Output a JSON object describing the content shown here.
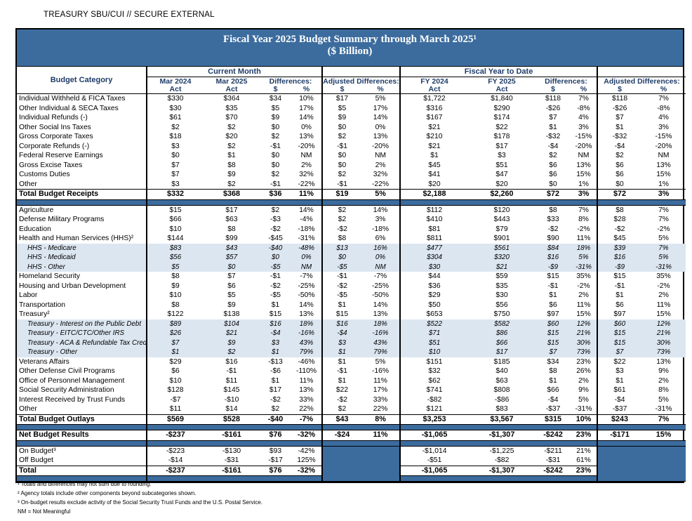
{
  "banner": "TREASURY SBU/CUI // SECURE EXTERNAL",
  "title": {
    "line1": "Fiscal Year 2025 Budget Summary through March 2025¹",
    "line2": "($ Billion)"
  },
  "columns": {
    "budget_category": "Budget Category",
    "group_current": "Current Month",
    "group_fytd": "Fiscal Year to Date",
    "mar_2024": "Mar 2024",
    "mar_2025": "Mar 2025",
    "fy_2024": "FY 2024",
    "fy_2025": "FY 2025",
    "act": "Act",
    "differences": "Differences:",
    "adjusted_differences": "Adjusted Differences:",
    "dollar": "$",
    "percent": "%"
  },
  "sections": {
    "receipts": [
      {
        "label": "Individual Withheld & FICA Taxes",
        "style": "normal",
        "values": [
          "$330",
          "$364",
          "$34",
          "10%",
          "$17",
          "5%",
          "$1,722",
          "$1,840",
          "$118",
          "7%",
          "$118",
          "7%"
        ]
      },
      {
        "label": "Other Individual & SECA Taxes",
        "style": "normal",
        "values": [
          "$30",
          "$35",
          "$5",
          "17%",
          "$5",
          "17%",
          "$316",
          "$290",
          "-$26",
          "-8%",
          "-$26",
          "-8%"
        ]
      },
      {
        "label": "Individual Refunds (-)",
        "style": "normal",
        "values": [
          "$61",
          "$70",
          "$9",
          "14%",
          "$9",
          "14%",
          "$167",
          "$174",
          "$7",
          "4%",
          "$7",
          "4%"
        ]
      },
      {
        "label": "Other Social Ins Taxes",
        "style": "normal",
        "values": [
          "$2",
          "$2",
          "$0",
          "0%",
          "$0",
          "0%",
          "$21",
          "$22",
          "$1",
          "3%",
          "$1",
          "3%"
        ]
      },
      {
        "label": "Gross Corporate Taxes",
        "style": "normal",
        "values": [
          "$18",
          "$20",
          "$2",
          "13%",
          "$2",
          "13%",
          "$210",
          "$178",
          "-$32",
          "-15%",
          "-$32",
          "-15%"
        ]
      },
      {
        "label": "Corporate Refunds (-)",
        "style": "normal",
        "values": [
          "$3",
          "$2",
          "-$1",
          "-20%",
          "-$1",
          "-20%",
          "$21",
          "$17",
          "-$4",
          "-20%",
          "-$4",
          "-20%"
        ]
      },
      {
        "label": "Federal Reserve Earnings",
        "style": "normal",
        "values": [
          "$0",
          "$1",
          "$0",
          "NM",
          "$0",
          "NM",
          "$1",
          "$3",
          "$2",
          "NM",
          "$2",
          "NM"
        ]
      },
      {
        "label": "Gross Excise Taxes",
        "style": "normal",
        "values": [
          "$7",
          "$8",
          "$0",
          "2%",
          "$0",
          "2%",
          "$45",
          "$51",
          "$6",
          "13%",
          "$6",
          "13%"
        ]
      },
      {
        "label": "Customs Duties",
        "style": "normal",
        "values": [
          "$7",
          "$9",
          "$2",
          "32%",
          "$2",
          "32%",
          "$41",
          "$47",
          "$6",
          "15%",
          "$6",
          "15%"
        ]
      },
      {
        "label": "Other",
        "style": "normal",
        "values": [
          "$3",
          "$2",
          "-$1",
          "-22%",
          "-$1",
          "-22%",
          "$20",
          "$20",
          "$0",
          "1%",
          "$0",
          "1%"
        ]
      },
      {
        "label": "Total Budget Receipts",
        "style": "bold",
        "values": [
          "$332",
          "$368",
          "$36",
          "11%",
          "$19",
          "5%",
          "$2,188",
          "$2,260",
          "$72",
          "3%",
          "$72",
          "3%"
        ]
      }
    ],
    "outlays": [
      {
        "label": "Agriculture",
        "style": "normal",
        "values": [
          "$15",
          "$17",
          "$2",
          "14%",
          "$2",
          "14%",
          "$112",
          "$120",
          "$8",
          "7%",
          "$8",
          "7%"
        ]
      },
      {
        "label": "Defense Military Programs",
        "style": "normal",
        "values": [
          "$66",
          "$63",
          "-$3",
          "-4%",
          "$2",
          "3%",
          "$410",
          "$443",
          "$33",
          "8%",
          "$28",
          "7%"
        ]
      },
      {
        "label": "Education",
        "style": "normal",
        "values": [
          "$10",
          "$8",
          "-$2",
          "-18%",
          "-$2",
          "-18%",
          "$81",
          "$79",
          "-$2",
          "-2%",
          "-$2",
          "-2%"
        ]
      },
      {
        "label": "Health and Human Services (HHS)²",
        "style": "normal",
        "values": [
          "$144",
          "$99",
          "-$45",
          "-31%",
          "$8",
          "6%",
          "$811",
          "$901",
          "$90",
          "11%",
          "$45",
          "5%"
        ]
      },
      {
        "label": "HHS - Medicare",
        "style": "sub",
        "values": [
          "$83",
          "$43",
          "-$40",
          "-48%",
          "$13",
          "16%",
          "$477",
          "$561",
          "$84",
          "18%",
          "$39",
          "7%"
        ]
      },
      {
        "label": "HHS - Medicaid",
        "style": "sub",
        "values": [
          "$56",
          "$57",
          "$0",
          "0%",
          "$0",
          "0%",
          "$304",
          "$320",
          "$16",
          "5%",
          "$16",
          "5%"
        ]
      },
      {
        "label": "HHS - Other",
        "style": "sub",
        "values": [
          "$5",
          "$0",
          "-$5",
          "NM",
          "-$5",
          "NM",
          "$30",
          "$21",
          "-$9",
          "-31%",
          "-$9",
          "-31%"
        ]
      },
      {
        "label": "Homeland Security",
        "style": "normal",
        "values": [
          "$8",
          "$7",
          "-$1",
          "-7%",
          "-$1",
          "-7%",
          "$44",
          "$59",
          "$15",
          "35%",
          "$15",
          "35%"
        ]
      },
      {
        "label": "Housing and Urban Development",
        "style": "normal",
        "values": [
          "$9",
          "$6",
          "-$2",
          "-25%",
          "-$2",
          "-25%",
          "$36",
          "$35",
          "-$1",
          "-2%",
          "-$1",
          "-2%"
        ]
      },
      {
        "label": "Labor",
        "style": "normal",
        "values": [
          "$10",
          "$5",
          "-$5",
          "-50%",
          "-$5",
          "-50%",
          "$29",
          "$30",
          "$1",
          "2%",
          "$1",
          "2%"
        ]
      },
      {
        "label": "Transportation",
        "style": "normal",
        "values": [
          "$8",
          "$9",
          "$1",
          "14%",
          "$1",
          "14%",
          "$50",
          "$56",
          "$6",
          "11%",
          "$6",
          "11%"
        ]
      },
      {
        "label": "Treasury²",
        "style": "normal",
        "values": [
          "$122",
          "$138",
          "$15",
          "13%",
          "$15",
          "13%",
          "$653",
          "$750",
          "$97",
          "15%",
          "$97",
          "15%"
        ]
      },
      {
        "label": "Treasury - Interest on the Public Debt",
        "style": "sub",
        "values": [
          "$89",
          "$104",
          "$16",
          "18%",
          "$16",
          "18%",
          "$522",
          "$582",
          "$60",
          "12%",
          "$60",
          "12%"
        ]
      },
      {
        "label": "Treasury - EITC/CTC/Other IRS",
        "style": "sub",
        "values": [
          "$26",
          "$21",
          "-$4",
          "-16%",
          "-$4",
          "-16%",
          "$71",
          "$86",
          "$15",
          "21%",
          "$15",
          "21%"
        ]
      },
      {
        "label": "Treasury - ACA & Refundable Tax Credits",
        "style": "sub",
        "values": [
          "$7",
          "$9",
          "$3",
          "43%",
          "$3",
          "43%",
          "$51",
          "$66",
          "$15",
          "30%",
          "$15",
          "30%"
        ]
      },
      {
        "label": "Treasury - Other",
        "style": "sub",
        "values": [
          "$1",
          "$2",
          "$1",
          "79%",
          "$1",
          "79%",
          "$10",
          "$17",
          "$7",
          "73%",
          "$7",
          "73%"
        ]
      },
      {
        "label": "Veterans Affairs",
        "style": "normal",
        "values": [
          "$29",
          "$16",
          "-$13",
          "-46%",
          "$1",
          "5%",
          "$151",
          "$185",
          "$34",
          "23%",
          "$22",
          "13%"
        ]
      },
      {
        "label": "Other Defense Civil Programs",
        "style": "normal",
        "values": [
          "$6",
          "-$1",
          "-$6",
          "-110%",
          "-$1",
          "-16%",
          "$32",
          "$40",
          "$8",
          "26%",
          "$3",
          "9%"
        ]
      },
      {
        "label": "Office of Personnel Management",
        "style": "normal",
        "values": [
          "$10",
          "$11",
          "$1",
          "11%",
          "$1",
          "11%",
          "$62",
          "$63",
          "$1",
          "2%",
          "$1",
          "2%"
        ]
      },
      {
        "label": "Social Security Administration",
        "style": "normal",
        "values": [
          "$128",
          "$145",
          "$17",
          "13%",
          "$22",
          "17%",
          "$741",
          "$808",
          "$66",
          "9%",
          "$61",
          "8%"
        ]
      },
      {
        "label": "Interest Received by Trust Funds",
        "style": "normal",
        "values": [
          "-$7",
          "-$10",
          "-$2",
          "33%",
          "-$2",
          "33%",
          "-$82",
          "-$86",
          "-$4",
          "5%",
          "-$4",
          "5%"
        ]
      },
      {
        "label": "Other",
        "style": "normal",
        "values": [
          "$11",
          "$14",
          "$2",
          "22%",
          "$2",
          "22%",
          "$121",
          "$83",
          "-$37",
          "-31%",
          "-$37",
          "-31%"
        ]
      },
      {
        "label": "Total Budget Outlays",
        "style": "bold",
        "values": [
          "$569",
          "$528",
          "-$40",
          "-7%",
          "$43",
          "8%",
          "$3,253",
          "$3,567",
          "$315",
          "10%",
          "$243",
          "7%"
        ]
      }
    ],
    "net": [
      {
        "label": "Net Budget Results",
        "style": "bold",
        "values": [
          "-$237",
          "-$161",
          "$76",
          "-32%",
          "-$24",
          "11%",
          "-$1,065",
          "-$1,307",
          "-$242",
          "23%",
          "-$171",
          "15%"
        ]
      }
    ],
    "budget_split": [
      {
        "label": "On Budget³",
        "style": "normal",
        "adjusted_blank": true,
        "values": [
          "-$223",
          "-$130",
          "$93",
          "-42%",
          "",
          "",
          "-$1,014",
          "-$1,225",
          "-$211",
          "21%",
          "",
          ""
        ]
      },
      {
        "label": "Off Budget",
        "style": "normal",
        "adjusted_blank": true,
        "values": [
          "-$14",
          "-$31",
          "-$17",
          "125%",
          "",
          "",
          "-$51",
          "-$82",
          "-$31",
          "61%",
          "",
          ""
        ]
      },
      {
        "label": "Total",
        "style": "bold",
        "adjusted_blank": true,
        "values": [
          "-$237",
          "-$161",
          "$76",
          "-32%",
          "",
          "",
          "-$1,065",
          "-$1,307",
          "-$242",
          "23%",
          "",
          ""
        ]
      }
    ]
  },
  "footnotes": [
    "¹ Totals and differences may not sum due to rounding.",
    "² Agency totals include other components beyond subcategories shown.",
    "³ On-budget results exclude activity of the Social Security Trust Funds and the U.S. Postal Service.",
    "NM = Not Meaningful"
  ],
  "colors": {
    "header_blue": "#3C6C9E",
    "header_text_navy": "#1F3C68",
    "subrow_blue": "#DCE6F1"
  }
}
